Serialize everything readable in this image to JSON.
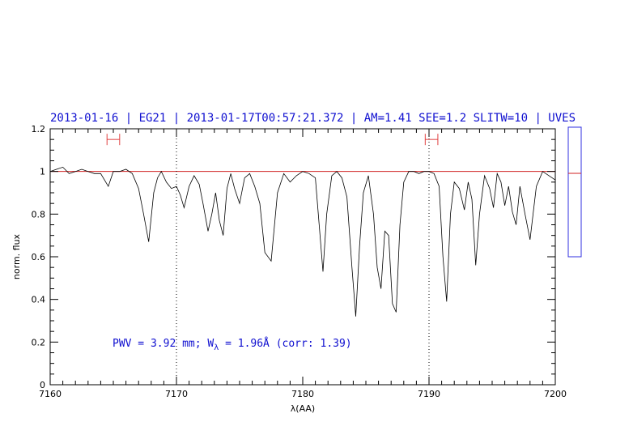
{
  "chart_data": {
    "type": "line",
    "title": "2013-01-16 | EG21 | 2013-01-17T00:57:21.372 | AM=1.41 SEE=1.2 SLITW=10 | UVES",
    "xlabel": "λ(AA)",
    "ylabel": "norm. flux",
    "xlim": [
      7160,
      7200
    ],
    "ylim": [
      0,
      1.2
    ],
    "x_ticks": [
      "7160",
      "7170",
      "7180",
      "7190",
      "7200"
    ],
    "y_ticks": [
      "0",
      "0.2",
      "0.4",
      "0.6",
      "0.8",
      "1",
      "1.2"
    ],
    "grid": false,
    "reference_lines": {
      "continuum_level": 1.0,
      "continuum_color": "#d02020",
      "dotted_vertical_x": [
        7170,
        7190
      ]
    },
    "continuum_windows": [
      {
        "x_start": 7164.5,
        "x_end": 7165.5,
        "y": 1.15
      },
      {
        "x_start": 7189.7,
        "x_end": 7190.7,
        "y": 1.15
      }
    ],
    "annotation": {
      "prefix": "PWV = 3.92 mm; W",
      "subscript": "λ",
      "suffix": " = 1.96Å (corr: 1.39)"
    },
    "side_panel": {
      "marker_level": 1.0,
      "frame_color": "#3030e0",
      "marker_color": "#d02020"
    },
    "series": [
      {
        "color": "#000000",
        "x": [
          7160.0,
          7160.5,
          7161.0,
          7161.5,
          7162.0,
          7162.5,
          7163.0,
          7163.5,
          7164.0,
          7164.3,
          7164.6,
          7165.0,
          7165.5,
          7166.0,
          7166.5,
          7167.0,
          7167.4,
          7167.8,
          7168.2,
          7168.5,
          7168.8,
          7169.2,
          7169.6,
          7170.0,
          7170.3,
          7170.6,
          7171.0,
          7171.4,
          7171.8,
          7172.1,
          7172.5,
          7172.8,
          7173.1,
          7173.4,
          7173.7,
          7174.0,
          7174.3,
          7174.6,
          7175.0,
          7175.4,
          7175.8,
          7176.2,
          7176.6,
          7177.0,
          7177.5,
          7178.0,
          7178.5,
          7179.0,
          7179.5,
          7180.0,
          7180.5,
          7181.0,
          7181.3,
          7181.6,
          7181.9,
          7182.3,
          7182.7,
          7183.1,
          7183.5,
          7183.9,
          7184.2,
          7184.5,
          7184.8,
          7185.2,
          7185.6,
          7185.9,
          7186.2,
          7186.5,
          7186.8,
          7187.1,
          7187.4,
          7187.7,
          7188.0,
          7188.4,
          7188.8,
          7189.2,
          7189.6,
          7190.0,
          7190.4,
          7190.8,
          7191.1,
          7191.4,
          7191.7,
          7192.0,
          7192.4,
          7192.8,
          7193.1,
          7193.4,
          7193.7,
          7194.0,
          7194.4,
          7194.8,
          7195.1,
          7195.4,
          7195.7,
          7196.0,
          7196.3,
          7196.6,
          7196.9,
          7197.2,
          7197.6,
          7198.0,
          7198.5,
          7199.0,
          7199.5,
          7200.0
        ],
        "y": [
          1.0,
          1.01,
          1.02,
          0.99,
          1.0,
          1.01,
          1.0,
          0.99,
          0.99,
          0.96,
          0.93,
          1.0,
          1.0,
          1.01,
          0.99,
          0.92,
          0.8,
          0.67,
          0.9,
          0.97,
          1.0,
          0.95,
          0.92,
          0.93,
          0.89,
          0.83,
          0.93,
          0.98,
          0.94,
          0.85,
          0.72,
          0.8,
          0.9,
          0.77,
          0.7,
          0.92,
          0.99,
          0.92,
          0.85,
          0.97,
          0.99,
          0.93,
          0.85,
          0.62,
          0.58,
          0.9,
          0.99,
          0.95,
          0.98,
          1.0,
          0.99,
          0.97,
          0.75,
          0.53,
          0.8,
          0.98,
          1.0,
          0.97,
          0.88,
          0.55,
          0.32,
          0.65,
          0.9,
          0.98,
          0.8,
          0.55,
          0.45,
          0.72,
          0.7,
          0.38,
          0.34,
          0.75,
          0.95,
          1.0,
          1.0,
          0.99,
          1.0,
          1.0,
          0.99,
          0.93,
          0.6,
          0.39,
          0.8,
          0.95,
          0.92,
          0.82,
          0.95,
          0.87,
          0.56,
          0.8,
          0.98,
          0.92,
          0.83,
          0.99,
          0.95,
          0.84,
          0.93,
          0.81,
          0.75,
          0.93,
          0.8,
          0.68,
          0.93,
          1.0,
          0.98,
          0.96
        ]
      }
    ]
  }
}
